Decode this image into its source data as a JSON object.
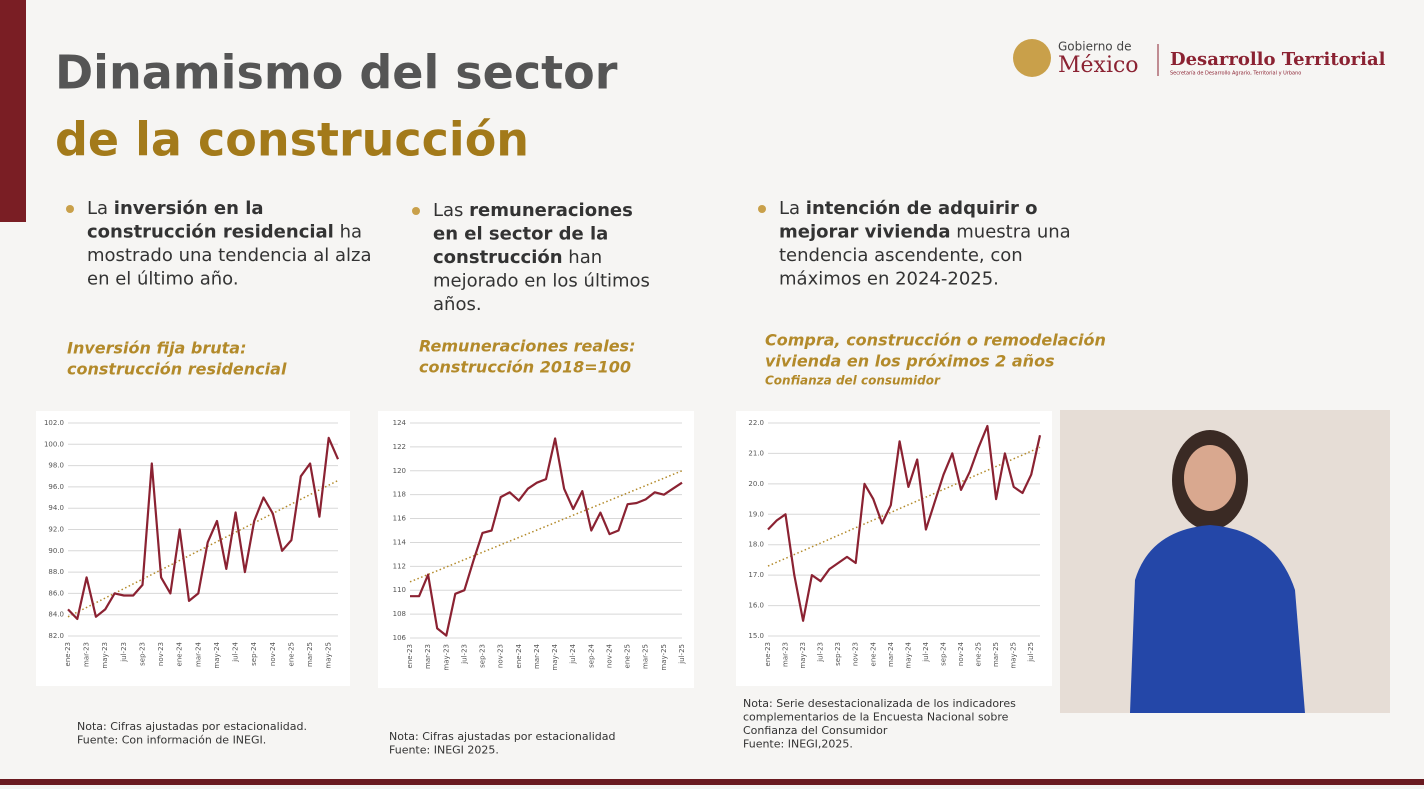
{
  "header": {
    "title_lines": [
      "Dinamismo del sector",
      "de la construcción"
    ],
    "logo_top": "Gobierno de",
    "logo_main": "México",
    "logo_right": "Desarrollo Territorial",
    "logo_sub": "Secretaría de Desarrollo Agrario, Territorial y Urbano"
  },
  "bullets": [
    [
      {
        "t": "La ",
        "b": false
      },
      {
        "t": "inversión en la construcción residencial",
        "b": true
      },
      {
        "t": " ha mostrado una tendencia al alza en el último año.",
        "b": false
      }
    ],
    [
      {
        "t": "Las ",
        "b": false
      },
      {
        "t": "remuneraciones en el sector de la construcción",
        "b": true
      },
      {
        "t": " han mejorado en los últimos años.",
        "b": false
      }
    ],
    [
      {
        "t": "La ",
        "b": false
      },
      {
        "t": "intención de adquirir o mejorar vivienda",
        "b": true
      },
      {
        "t": " muestra una tendencia ascendente, con máximos en 2024-2025.",
        "b": false
      }
    ]
  ],
  "chart_data": [
    {
      "type": "line",
      "title_lines": [
        "Inversión fija bruta:",
        "construcción residencial"
      ],
      "color": "#8b2232",
      "categories": [
        "ene-23",
        null,
        "mar-23",
        null,
        "may-23",
        null,
        "jul-23",
        null,
        "sep-23",
        null,
        "nov-23",
        null,
        "ene-24",
        null,
        "mar-24",
        null,
        "may-24",
        null,
        "jul-24",
        null,
        "sep-24",
        null,
        "nov-24",
        null,
        "ene-25",
        null,
        "mar-25",
        null,
        "may-25",
        null
      ],
      "values": [
        84.5,
        83.6,
        87.5,
        83.8,
        84.5,
        86.0,
        85.8,
        85.8,
        86.8,
        98.2,
        87.5,
        86.0,
        92.0,
        85.3,
        86.0,
        90.8,
        92.8,
        88.3,
        93.6,
        88.0,
        92.8,
        95.0,
        93.5,
        90.0,
        91.0,
        97.0,
        98.2,
        93.2,
        100.6,
        98.6
      ],
      "trend": [
        83.8,
        96.6
      ],
      "ylim": [
        82,
        102
      ],
      "yticks": [
        {
          "value": 82,
          "label": "82.0"
        },
        {
          "value": 84,
          "label": "84.0"
        },
        {
          "value": 86,
          "label": "86.0"
        },
        {
          "value": 88,
          "label": "88.0"
        },
        {
          "value": 90,
          "label": "90.0"
        },
        {
          "value": 92,
          "label": "92.0"
        },
        {
          "value": 94,
          "label": "94.0"
        },
        {
          "value": 96,
          "label": "96.0"
        },
        {
          "value": 98,
          "label": "98.0"
        },
        {
          "value": 100,
          "label": "100.0"
        },
        {
          "value": 102,
          "label": "102.0"
        }
      ],
      "grid": true,
      "notes": [
        "Nota: Cifras ajustadas por estacionalidad.",
        "Fuente: Con información de INEGI."
      ]
    },
    {
      "type": "line",
      "title_lines": [
        "Remuneraciones reales:",
        "construcción 2018=100"
      ],
      "color": "#8b2232",
      "categories": [
        "ene-23",
        null,
        "mar-23",
        null,
        "may-23",
        null,
        "jul-23",
        null,
        "sep-23",
        null,
        "nov-23",
        null,
        "ene-24",
        null,
        "mar-24",
        null,
        "may-24",
        null,
        "jul-24",
        null,
        "sep-24",
        null,
        "nov-24",
        null,
        "ene-25",
        null,
        "mar-25",
        null,
        "may-25",
        null,
        "jul-25"
      ],
      "values": [
        109.5,
        109.5,
        111.3,
        106.8,
        106.2,
        109.7,
        110.0,
        112.5,
        114.8,
        115.0,
        117.8,
        118.2,
        117.5,
        118.5,
        119.0,
        119.3,
        122.7,
        118.5,
        116.8,
        118.3,
        115.0,
        116.5,
        114.7,
        115.0,
        117.2,
        117.3,
        117.6,
        118.2,
        118.0,
        118.5,
        119.0
      ],
      "trend": [
        110.7,
        120.0
      ],
      "ylim": [
        106,
        124
      ],
      "yticks": [
        106,
        108,
        110,
        112,
        114,
        116,
        118,
        120,
        122,
        124
      ],
      "grid": true,
      "notes": [
        "Nota: Cifras ajustadas por estacionalidad",
        "Fuente: INEGI 2025."
      ]
    },
    {
      "type": "line",
      "title_lines": [
        "Compra, construcción o remodelación",
        "vivienda en los próximos 2 años"
      ],
      "subtitle": "Confianza del consumidor",
      "color": "#8b2232",
      "categories": [
        "ene-23",
        null,
        "mar-23",
        null,
        "may-23",
        null,
        "jul-23",
        null,
        "sep-23",
        null,
        "nov-23",
        null,
        "ene-24",
        null,
        "mar-24",
        null,
        "may-24",
        null,
        "jul-24",
        null,
        "sep-24",
        null,
        "nov-24",
        null,
        "ene-25",
        null,
        "mar-25",
        null,
        "may-25",
        null,
        "jul-25",
        null
      ],
      "values": [
        18.5,
        18.8,
        19.0,
        17.0,
        15.5,
        17.0,
        16.8,
        17.2,
        17.4,
        17.6,
        17.4,
        20.0,
        19.5,
        18.7,
        19.3,
        21.4,
        19.9,
        20.8,
        18.5,
        19.4,
        20.3,
        21.0,
        19.8,
        20.4,
        21.2,
        21.9,
        19.5,
        21.0,
        19.9,
        19.7,
        20.3,
        21.6
      ],
      "trend": [
        17.3,
        21.2
      ],
      "ylim": [
        15,
        22
      ],
      "yticks": [
        {
          "value": 15,
          "label": "15.0"
        },
        {
          "value": 16,
          "label": "16.0"
        },
        {
          "value": 17,
          "label": "17.0"
        },
        {
          "value": 18,
          "label": "18.0"
        },
        {
          "value": 19,
          "label": "19.0"
        },
        {
          "value": 20,
          "label": "20.0"
        },
        {
          "value": 21,
          "label": "21.0"
        },
        {
          "value": 22,
          "label": "22.0"
        }
      ],
      "grid": true,
      "notes": [
        "Nota: Serie desestacionalizada de los indicadores",
        "complementarios de la Encuesta Nacional sobre",
        "Confianza del Consumidor",
        "Fuente: INEGI,2025."
      ]
    }
  ]
}
